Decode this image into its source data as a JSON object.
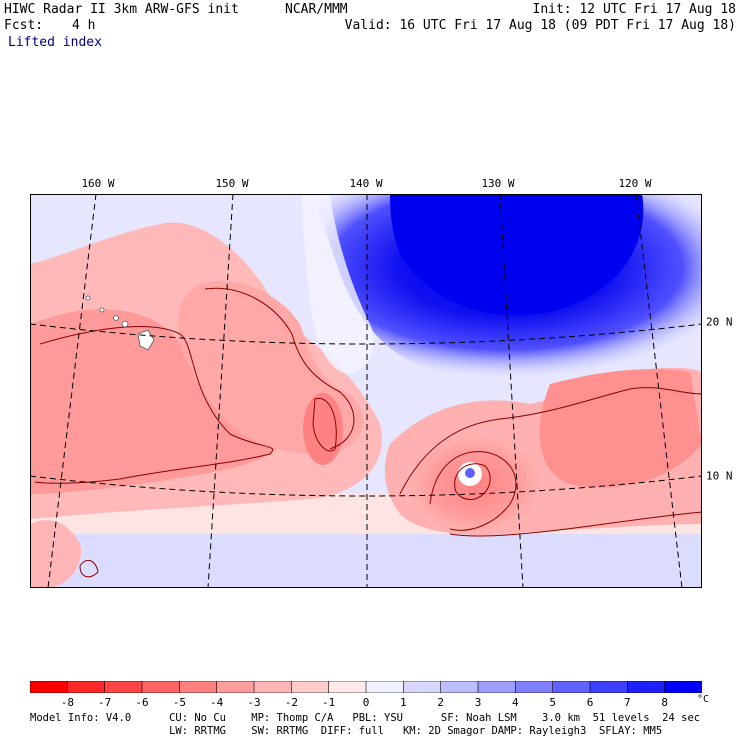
{
  "header": {
    "title": "HIWC Radar II 3km ARW-GFS init",
    "org": "NCAR/MMM",
    "init": "Init: 12 UTC Fri 17 Aug 18",
    "fcst_label": "Fcst:",
    "fcst_value": "4 h",
    "valid": "Valid: 16 UTC Fri 17 Aug 18 (09 PDT Fri 17 Aug 18)",
    "field": "Lifted index"
  },
  "map": {
    "lon_labels": [
      "160 W",
      "150 W",
      "140 W",
      "130 W",
      "120 W"
    ],
    "lat_labels": [
      "20 N",
      "10 N"
    ]
  },
  "colorbar": {
    "ticks": [
      "-8",
      "-7",
      "-6",
      "-5",
      "-4",
      "-3",
      "-2",
      "-1",
      "0",
      "1",
      "2",
      "3",
      "4",
      "5",
      "6",
      "7",
      "8"
    ],
    "unit": "°C",
    "colors": [
      "#ff0000",
      "#ff2828",
      "#ff4545",
      "#ff6464",
      "#ff8080",
      "#ff9c9c",
      "#ffb5b5",
      "#ffcccc",
      "#ffe9e9",
      "#f2f2ff",
      "#d8d8ff",
      "#bcbcff",
      "#9e9eff",
      "#8080ff",
      "#6262ff",
      "#4040ff",
      "#2020ff",
      "#0000ff"
    ]
  },
  "footer": {
    "line1": "Model Info: V4.0      CU: No Cu    MP: Thomp C/A   PBL: YSU      SF: Noah LSM    3.0 km  51 levels  24 sec",
    "line2": "                      LW: RRTMG    SW: RRTMG  DIFF: full   KM: 2D Smagor DAMP: Rayleigh3  SFLAY: MM5"
  }
}
